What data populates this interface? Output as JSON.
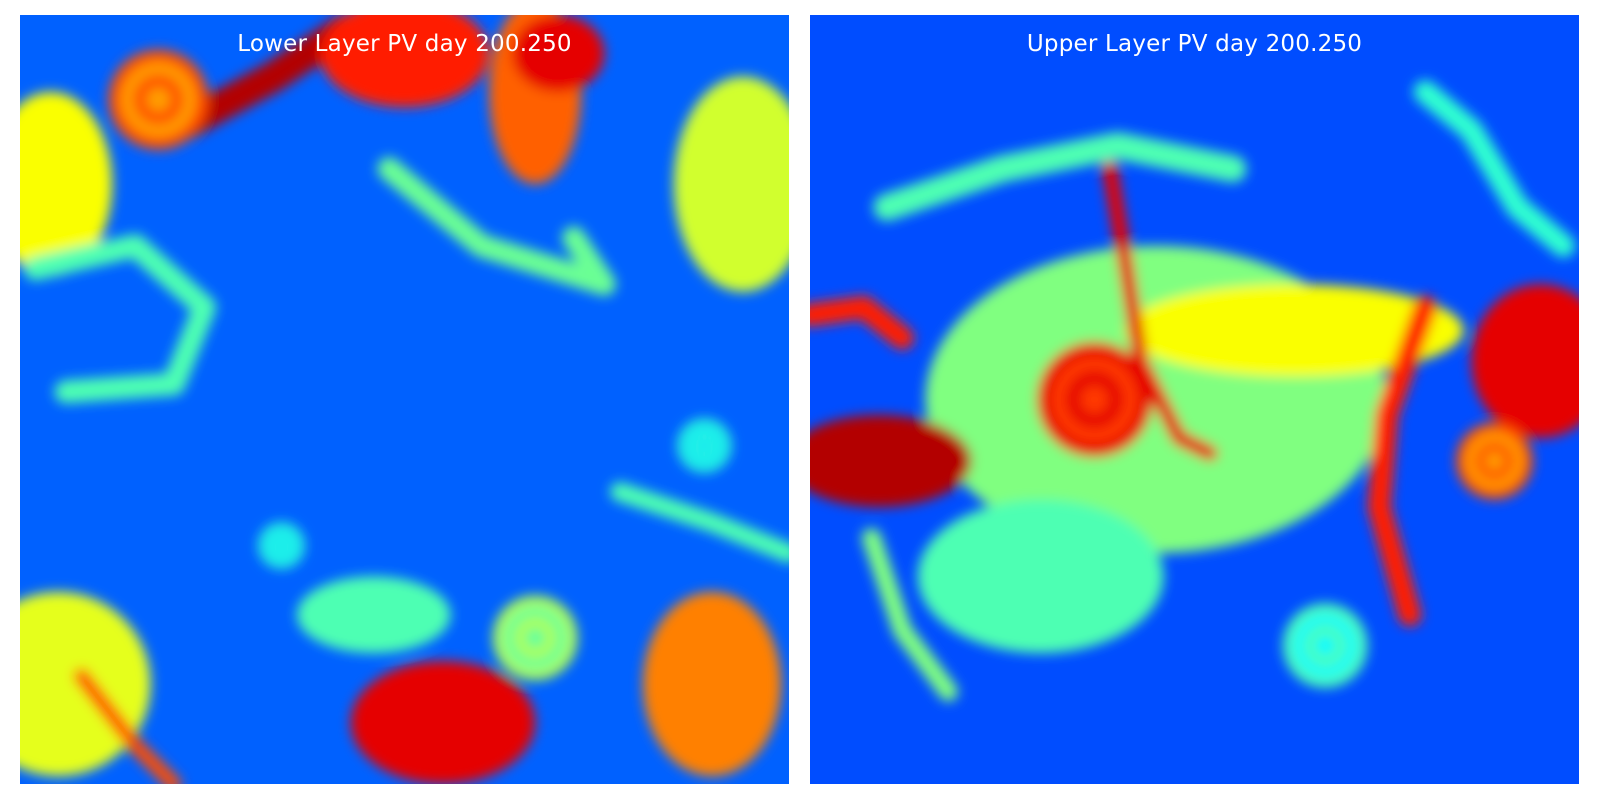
{
  "chart_data": [
    {
      "type": "heatmap",
      "title": "Lower Layer PV day 200.250",
      "colormap": "jet",
      "background_level": 0.22,
      "axes": "off",
      "features": [
        {
          "level": 0.95,
          "shape": "filament",
          "pts": [
            [
              0.22,
              0.14
            ],
            [
              0.33,
              0.08
            ],
            [
              0.42,
              0.02
            ]
          ],
          "w": 0.04
        },
        {
          "level": 0.85,
          "shape": "blob",
          "cx": 0.5,
          "cy": 0.05,
          "rx": 0.11,
          "ry": 0.07
        },
        {
          "level": 0.78,
          "shape": "blob",
          "cx": 0.67,
          "cy": 0.1,
          "rx": 0.06,
          "ry": 0.12
        },
        {
          "level": 0.9,
          "shape": "blob",
          "cx": 0.7,
          "cy": 0.05,
          "rx": 0.06,
          "ry": 0.05
        },
        {
          "level": 0.8,
          "shape": "vortex",
          "cx": 0.18,
          "cy": 0.11,
          "r": 0.065
        },
        {
          "level": 0.62,
          "shape": "blob",
          "cx": 0.04,
          "cy": 0.22,
          "rx": 0.08,
          "ry": 0.12
        },
        {
          "level": 0.58,
          "shape": "blob",
          "cx": 0.94,
          "cy": 0.22,
          "rx": 0.09,
          "ry": 0.14
        },
        {
          "level": 0.45,
          "shape": "filament",
          "pts": [
            [
              0.02,
              0.33
            ],
            [
              0.15,
              0.3
            ],
            [
              0.24,
              0.38
            ],
            [
              0.2,
              0.48
            ],
            [
              0.06,
              0.49
            ]
          ],
          "w": 0.03
        },
        {
          "level": 0.48,
          "shape": "filament",
          "pts": [
            [
              0.48,
              0.2
            ],
            [
              0.6,
              0.3
            ],
            [
              0.76,
              0.35
            ],
            [
              0.72,
              0.29
            ]
          ],
          "w": 0.03
        },
        {
          "level": 0.42,
          "shape": "vortex",
          "cx": 0.89,
          "cy": 0.56,
          "r": 0.035
        },
        {
          "level": 0.45,
          "shape": "filament",
          "pts": [
            [
              0.78,
              0.62
            ],
            [
              0.9,
              0.66
            ],
            [
              1.0,
              0.7
            ]
          ],
          "w": 0.025
        },
        {
          "level": 0.6,
          "shape": "blob",
          "cx": 0.05,
          "cy": 0.87,
          "rx": 0.12,
          "ry": 0.12
        },
        {
          "level": 0.8,
          "shape": "filament",
          "pts": [
            [
              0.08,
              0.86
            ],
            [
              0.15,
              0.95
            ],
            [
              0.2,
              1.0
            ]
          ],
          "w": 0.02
        },
        {
          "level": 0.9,
          "shape": "blob",
          "cx": 0.55,
          "cy": 0.92,
          "rx": 0.12,
          "ry": 0.08
        },
        {
          "level": 0.75,
          "shape": "blob",
          "cx": 0.9,
          "cy": 0.87,
          "rx": 0.09,
          "ry": 0.12
        },
        {
          "level": 0.55,
          "shape": "vortex",
          "cx": 0.67,
          "cy": 0.81,
          "r": 0.055
        },
        {
          "level": 0.45,
          "shape": "blob",
          "cx": 0.46,
          "cy": 0.78,
          "rx": 0.1,
          "ry": 0.05
        },
        {
          "level": 0.42,
          "shape": "vortex",
          "cx": 0.34,
          "cy": 0.69,
          "r": 0.03
        }
      ]
    },
    {
      "type": "heatmap",
      "title": "Upper Layer PV day 200.250",
      "colormap": "jet",
      "background_level": 0.2,
      "axes": "off",
      "features": [
        {
          "level": 0.5,
          "shape": "blob",
          "cx": 0.45,
          "cy": 0.5,
          "rx": 0.3,
          "ry": 0.2
        },
        {
          "level": 0.62,
          "shape": "blob",
          "cx": 0.63,
          "cy": 0.41,
          "rx": 0.22,
          "ry": 0.06
        },
        {
          "level": 0.9,
          "shape": "vortex",
          "cx": 0.37,
          "cy": 0.5,
          "r": 0.075
        },
        {
          "level": 0.9,
          "shape": "filament",
          "pts": [
            [
              0.39,
              0.2
            ],
            [
              0.41,
              0.32
            ],
            [
              0.43,
              0.45
            ],
            [
              0.48,
              0.55
            ],
            [
              0.52,
              0.57
            ]
          ],
          "w": 0.02
        },
        {
          "level": 0.95,
          "shape": "blob",
          "cx": 0.09,
          "cy": 0.58,
          "rx": 0.12,
          "ry": 0.06
        },
        {
          "level": 0.85,
          "shape": "filament",
          "pts": [
            [
              0.0,
              0.39
            ],
            [
              0.07,
              0.38
            ],
            [
              0.12,
              0.42
            ]
          ],
          "w": 0.03
        },
        {
          "level": 0.9,
          "shape": "blob",
          "cx": 0.95,
          "cy": 0.45,
          "rx": 0.09,
          "ry": 0.1
        },
        {
          "level": 0.85,
          "shape": "filament",
          "pts": [
            [
              0.8,
              0.38
            ],
            [
              0.75,
              0.52
            ],
            [
              0.74,
              0.64
            ],
            [
              0.78,
              0.78
            ]
          ],
          "w": 0.03
        },
        {
          "level": 0.8,
          "shape": "vortex",
          "cx": 0.89,
          "cy": 0.58,
          "r": 0.05
        },
        {
          "level": 0.45,
          "shape": "vortex",
          "cx": 0.67,
          "cy": 0.82,
          "r": 0.055
        },
        {
          "level": 0.45,
          "shape": "filament",
          "pts": [
            [
              0.1,
              0.25
            ],
            [
              0.25,
              0.2
            ],
            [
              0.4,
              0.17
            ],
            [
              0.55,
              0.2
            ]
          ],
          "w": 0.035
        },
        {
          "level": 0.42,
          "shape": "filament",
          "pts": [
            [
              0.8,
              0.1
            ],
            [
              0.86,
              0.15
            ],
            [
              0.92,
              0.25
            ],
            [
              0.98,
              0.3
            ]
          ],
          "w": 0.03
        },
        {
          "level": 0.45,
          "shape": "blob",
          "cx": 0.3,
          "cy": 0.73,
          "rx": 0.16,
          "ry": 0.1
        },
        {
          "level": 0.5,
          "shape": "filament",
          "pts": [
            [
              0.08,
              0.68
            ],
            [
              0.12,
              0.8
            ],
            [
              0.18,
              0.88
            ]
          ],
          "w": 0.025
        }
      ]
    }
  ]
}
